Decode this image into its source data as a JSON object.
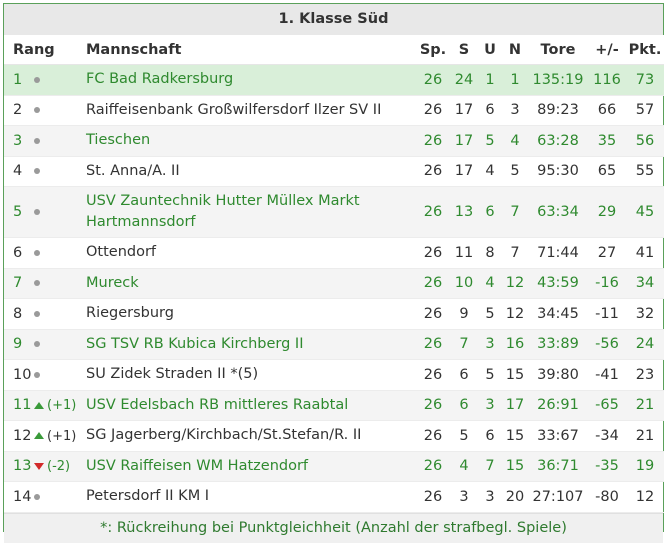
{
  "title": "1. Klasse Süd",
  "headers": {
    "rank": "Rang",
    "team": "Mannschaft",
    "played": "Sp.",
    "won": "S",
    "draw": "U",
    "lost": "N",
    "goals": "Tore",
    "diff": "+/-",
    "points": "Pkt."
  },
  "rows": [
    {
      "rank": "1",
      "trend": "same",
      "change": "",
      "team": "FC Bad Radkersburg",
      "played": "26",
      "won": "24",
      "draw": "1",
      "lost": "1",
      "goals": "135:19",
      "diff": "116",
      "points": "73"
    },
    {
      "rank": "2",
      "trend": "same",
      "change": "",
      "team": "Raiffeisenbank Großwilfersdorf Ilzer SV II",
      "played": "26",
      "won": "17",
      "draw": "6",
      "lost": "3",
      "goals": "89:23",
      "diff": "66",
      "points": "57"
    },
    {
      "rank": "3",
      "trend": "same",
      "change": "",
      "team": "Tieschen",
      "played": "26",
      "won": "17",
      "draw": "5",
      "lost": "4",
      "goals": "63:28",
      "diff": "35",
      "points": "56"
    },
    {
      "rank": "4",
      "trend": "same",
      "change": "",
      "team": "St. Anna/A. II",
      "played": "26",
      "won": "17",
      "draw": "4",
      "lost": "5",
      "goals": "95:30",
      "diff": "65",
      "points": "55"
    },
    {
      "rank": "5",
      "trend": "same",
      "change": "",
      "team": "USV Zauntechnik Hutter Müllex Markt Hartmannsdorf",
      "played": "26",
      "won": "13",
      "draw": "6",
      "lost": "7",
      "goals": "63:34",
      "diff": "29",
      "points": "45"
    },
    {
      "rank": "6",
      "trend": "same",
      "change": "",
      "team": "Ottendorf",
      "played": "26",
      "won": "11",
      "draw": "8",
      "lost": "7",
      "goals": "71:44",
      "diff": "27",
      "points": "41"
    },
    {
      "rank": "7",
      "trend": "same",
      "change": "",
      "team": "Mureck",
      "played": "26",
      "won": "10",
      "draw": "4",
      "lost": "12",
      "goals": "43:59",
      "diff": "-16",
      "points": "34"
    },
    {
      "rank": "8",
      "trend": "same",
      "change": "",
      "team": "Riegersburg",
      "played": "26",
      "won": "9",
      "draw": "5",
      "lost": "12",
      "goals": "34:45",
      "diff": "-11",
      "points": "32"
    },
    {
      "rank": "9",
      "trend": "same",
      "change": "",
      "team": "SG TSV RB Kubica Kirchberg II",
      "played": "26",
      "won": "7",
      "draw": "3",
      "lost": "16",
      "goals": "33:89",
      "diff": "-56",
      "points": "24"
    },
    {
      "rank": "10",
      "trend": "same",
      "change": "",
      "team": "SU Zidek Straden II *(5)",
      "played": "26",
      "won": "6",
      "draw": "5",
      "lost": "15",
      "goals": "39:80",
      "diff": "-41",
      "points": "23"
    },
    {
      "rank": "11",
      "trend": "up",
      "change": "(+1)",
      "team": "USV Edelsbach RB mittleres Raabtal",
      "played": "26",
      "won": "6",
      "draw": "3",
      "lost": "17",
      "goals": "26:91",
      "diff": "-65",
      "points": "21"
    },
    {
      "rank": "12",
      "trend": "up",
      "change": "(+1)",
      "team": "SG Jagerberg/Kirchbach/St.Stefan/R. II",
      "played": "26",
      "won": "5",
      "draw": "6",
      "lost": "15",
      "goals": "33:67",
      "diff": "-34",
      "points": "21"
    },
    {
      "rank": "13",
      "trend": "down",
      "change": "(-2)",
      "team": "USV Raiffeisen WM Hatzendorf",
      "played": "26",
      "won": "4",
      "draw": "7",
      "lost": "15",
      "goals": "36:71",
      "diff": "-35",
      "points": "19"
    },
    {
      "rank": "14",
      "trend": "same",
      "change": "",
      "team": "Petersdorf II KM I",
      "played": "26",
      "won": "3",
      "draw": "3",
      "lost": "20",
      "goals": "27:107",
      "diff": "-80",
      "points": "12"
    }
  ],
  "footer": "*: Rückreihung bei Punktgleichheit (Anzahl der strafbegl. Spiele)",
  "colors": {
    "highlight": "#d9efd9",
    "link_green": "#2f8a2f",
    "up": "#3a9a3a",
    "down": "#d22a2a",
    "border": "#5aa05a"
  }
}
